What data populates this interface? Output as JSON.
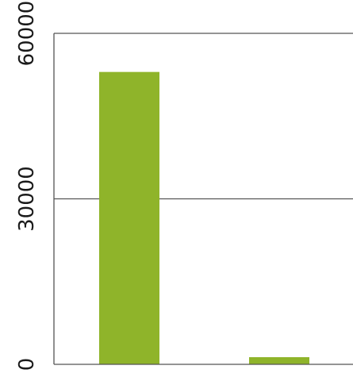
{
  "chart_data": {
    "type": "bar",
    "categories": [
      "",
      ""
    ],
    "series": [
      {
        "values": [
          53000,
          1300
        ]
      }
    ],
    "title": "",
    "xlabel": "",
    "ylabel": "",
    "ylim": [
      0,
      60000
    ],
    "yticks": [
      "0",
      "30000",
      "60000"
    ],
    "grid": true,
    "legend": "none",
    "bar_color": "#8fb42a",
    "axis_color": "#555555",
    "grid_color": "#555555"
  }
}
